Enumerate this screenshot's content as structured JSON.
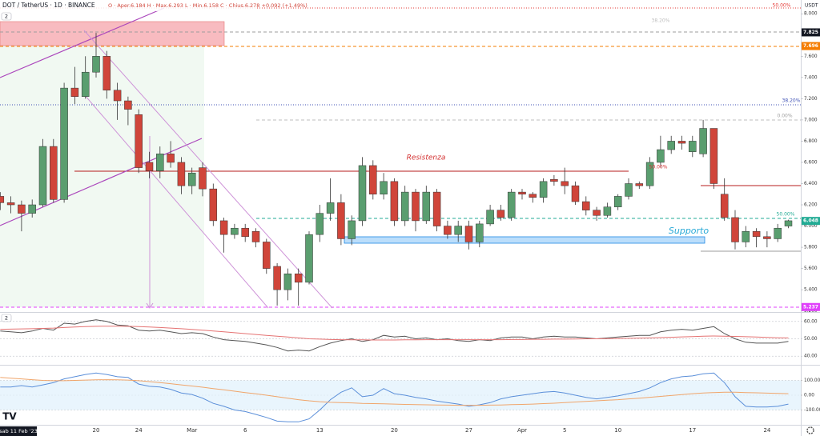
{
  "pane_badges": [
    "2",
    "2"
  ],
  "chart_data": [
    {
      "type": "candlestick",
      "title": "DOT / TetherUS · 1D · BINANCE",
      "subtitle": "O · Aper.6.184  H · Max.6.293  L · Min.6.158  C · Chius.6.278  +0.092 (+1.49%)",
      "crosshair_date": "sab 11 Feb '23",
      "y_label": "USDT",
      "annotations": [
        "Resistenza",
        "Supporto"
      ],
      "fib_labels": [
        "50.00%",
        "38.20%",
        "0.00%",
        "50.00%",
        "50.00%",
        "38.20%"
      ],
      "price_labels": [
        7.825,
        7.696,
        6.048,
        5.237
      ],
      "price_label_colors": [
        "#131722",
        "#f57c00",
        "#22ab94",
        "#e040fb"
      ],
      "up_color": "#5a9e6f",
      "down_color": "#d0453a",
      "ylim": [
        5.19,
        8.13
      ],
      "yticks": [
        {
          "value": 5.2,
          "label": "5.200"
        },
        {
          "value": 5.4,
          "label": "5.400"
        },
        {
          "value": 5.6,
          "label": "5.600"
        },
        {
          "value": 5.8,
          "label": "5.800"
        },
        {
          "value": 6,
          "label": "6.000"
        },
        {
          "value": 6.2,
          "label": "6.200"
        },
        {
          "value": 6.4,
          "label": "6.400"
        },
        {
          "value": 6.6,
          "label": "6.600"
        },
        {
          "value": 6.8,
          "label": "6.800"
        },
        {
          "value": 7,
          "label": "7.000"
        },
        {
          "value": 7.2,
          "label": "7.200"
        },
        {
          "value": 7.4,
          "label": "7.400"
        },
        {
          "value": 7.6,
          "label": "7.600"
        },
        {
          "value": 8,
          "label": "8.000"
        }
      ],
      "categories": [
        null,
        null,
        null,
        null,
        null,
        null,
        null,
        null,
        null,
        "20",
        null,
        null,
        null,
        "24",
        null,
        null,
        null,
        null,
        "Mar",
        null,
        null,
        null,
        null,
        "6",
        null,
        null,
        null,
        null,
        null,
        null,
        "13",
        null,
        null,
        null,
        null,
        null,
        null,
        "20",
        null,
        null,
        null,
        null,
        null,
        null,
        "27",
        null,
        null,
        null,
        null,
        "Apr",
        null,
        null,
        null,
        "5",
        null,
        null,
        null,
        null,
        "10",
        null,
        null,
        null,
        null,
        null,
        null,
        "17",
        null,
        null,
        null,
        null,
        null,
        null,
        "24",
        null,
        null
      ],
      "open": [
        6.28,
        6.22,
        6.2,
        6.12,
        6.2,
        6.75,
        6.25,
        7.3,
        7.22,
        7.45,
        7.6,
        7.28,
        7.18,
        7.05,
        6.6,
        6.52,
        6.68,
        6.6,
        6.38,
        6.55,
        6.35,
        6.05,
        5.92,
        5.98,
        5.95,
        5.85,
        5.62,
        5.4,
        5.55,
        5.47,
        5.92,
        6.12,
        6.22,
        5.88,
        6.05,
        6.57,
        6.3,
        6.42,
        6.05,
        6.32,
        6.05,
        6.32,
        6.0,
        5.92,
        6.0,
        5.85,
        6.02,
        6.15,
        6.08,
        6.32,
        6.3,
        6.27,
        6.44,
        6.42,
        6.38,
        6.23,
        6.15,
        6.1,
        6.18,
        6.28,
        6.4,
        6.38,
        6.6,
        6.72,
        6.8,
        6.7,
        6.68,
        6.92,
        6.3,
        6.08,
        5.85,
        5.95,
        5.9,
        5.88,
        6.0
      ],
      "high": [
        6.32,
        6.28,
        6.24,
        6.25,
        6.82,
        6.82,
        7.35,
        7.5,
        7.6,
        7.82,
        7.65,
        7.35,
        7.22,
        7.1,
        6.7,
        6.75,
        6.8,
        6.65,
        6.55,
        6.6,
        6.4,
        6.08,
        6.02,
        6.02,
        5.98,
        5.88,
        5.65,
        5.6,
        5.6,
        5.95,
        6.2,
        6.45,
        6.3,
        6.1,
        6.65,
        6.62,
        6.5,
        6.45,
        6.38,
        6.35,
        6.38,
        6.35,
        6.05,
        6.05,
        6.05,
        6.05,
        6.2,
        6.2,
        6.35,
        6.35,
        6.32,
        6.45,
        6.48,
        6.55,
        6.42,
        6.28,
        6.18,
        6.22,
        6.3,
        6.45,
        6.42,
        6.65,
        6.85,
        6.85,
        6.85,
        6.85,
        7.0,
        6.92,
        6.45,
        6.15,
        6.0,
        5.98,
        5.95,
        6.02,
        6.06
      ],
      "low": [
        6.15,
        6.12,
        5.95,
        6.08,
        6.18,
        6.22,
        6.22,
        7.15,
        7.2,
        7.4,
        7.2,
        7.0,
        6.95,
        6.5,
        6.45,
        6.45,
        6.55,
        6.3,
        6.3,
        6.28,
        6.0,
        5.75,
        5.88,
        5.85,
        5.8,
        5.55,
        5.25,
        5.3,
        5.25,
        5.45,
        5.85,
        6.05,
        5.82,
        5.82,
        6.0,
        6.25,
        6.25,
        6.0,
        6.0,
        5.95,
        6.02,
        5.95,
        5.88,
        5.85,
        5.78,
        5.8,
        6.0,
        6.05,
        6.05,
        6.25,
        6.22,
        6.22,
        6.38,
        6.3,
        6.2,
        6.1,
        6.05,
        6.08,
        6.15,
        6.25,
        6.35,
        6.35,
        6.55,
        6.68,
        6.72,
        6.65,
        6.65,
        6.35,
        6.05,
        5.78,
        5.8,
        5.8,
        5.8,
        5.85,
        5.98
      ],
      "close": [
        6.22,
        6.2,
        6.12,
        6.2,
        6.75,
        6.25,
        7.3,
        7.22,
        7.45,
        7.6,
        7.28,
        7.18,
        7.1,
        6.55,
        6.52,
        6.68,
        6.6,
        6.38,
        6.5,
        6.35,
        6.05,
        5.92,
        5.98,
        5.9,
        5.85,
        5.6,
        5.4,
        5.55,
        5.47,
        5.92,
        6.12,
        6.22,
        5.88,
        6.05,
        6.57,
        6.3,
        6.42,
        6.05,
        6.32,
        6.05,
        6.32,
        6.0,
        5.92,
        6.0,
        5.85,
        6.02,
        6.15,
        6.08,
        6.32,
        6.3,
        6.27,
        6.42,
        6.42,
        6.38,
        6.23,
        6.15,
        6.1,
        6.18,
        6.28,
        6.4,
        6.38,
        6.6,
        6.72,
        6.8,
        6.78,
        6.8,
        6.92,
        6.4,
        6.08,
        5.85,
        5.95,
        5.9,
        5.88,
        5.98,
        6.05
      ]
    },
    {
      "type": "line",
      "ylim": [
        35,
        65
      ],
      "yticks": [
        {
          "value": 40,
          "label": "40.00"
        },
        {
          "value": 50,
          "label": "50.00"
        },
        {
          "value": 60,
          "label": "60.00"
        }
      ],
      "series": [
        {
          "color": "#555555",
          "values": [
            54.5,
            54,
            53.5,
            54.5,
            56,
            55,
            59,
            58.5,
            60,
            61,
            60,
            58,
            57.5,
            55,
            54.5,
            55,
            54,
            53,
            53.5,
            53,
            51,
            49.5,
            49,
            48.5,
            47.5,
            46.5,
            45,
            43,
            43.5,
            43,
            45.5,
            47.5,
            49,
            50,
            48.5,
            49.5,
            52,
            51,
            51.5,
            50,
            50.5,
            49.5,
            50,
            49,
            48.5,
            49.5,
            49,
            50.5,
            51,
            51,
            50,
            51,
            51.5,
            51,
            51,
            50.5,
            50,
            50.5,
            51,
            51.5,
            52,
            52,
            54,
            55,
            55.5,
            55,
            56,
            57,
            53,
            50,
            48,
            47.5,
            47.5,
            47.5,
            48.5
          ]
        },
        {
          "color": "#e57373",
          "values": [
            55.5,
            55.6,
            55.7,
            55.8,
            56,
            56.2,
            56.5,
            56.8,
            57,
            57.2,
            57.3,
            57.3,
            57.2,
            57,
            56.8,
            56.5,
            56.2,
            55.8,
            55.4,
            55,
            54.5,
            54,
            53.5,
            53,
            52.5,
            52,
            51.5,
            51,
            50.5,
            50,
            49.8,
            49.6,
            49.5,
            49.4,
            49.4,
            49.3,
            49.3,
            49.3,
            49.4,
            49.4,
            49.5,
            49.5,
            49.5,
            49.5,
            49.5,
            49.5,
            49.5,
            49.5,
            49.6,
            49.6,
            49.7,
            49.7,
            49.8,
            49.8,
            49.9,
            50,
            50,
            50.1,
            50.2,
            50.3,
            50.4,
            50.5,
            50.7,
            50.9,
            51.1,
            51.3,
            51.5,
            51.6,
            51.5,
            51.4,
            51.2,
            51,
            50.8,
            50.6,
            50.5
          ]
        }
      ]
    },
    {
      "type": "line",
      "ylim": [
        -200,
        200
      ],
      "yticks": [
        {
          "value": -100,
          "label": "-100.00"
        },
        {
          "value": 0,
          "label": "0.00"
        },
        {
          "value": 100,
          "label": "100.00"
        }
      ],
      "series": [
        {
          "color": "#5b8fd9",
          "values": [
            55,
            55,
            65,
            55,
            70,
            85,
            110,
            125,
            140,
            150,
            140,
            125,
            120,
            75,
            60,
            55,
            40,
            15,
            5,
            -20,
            -55,
            -75,
            -100,
            -110,
            -130,
            -150,
            -175,
            -180,
            -180,
            -160,
            -100,
            -30,
            20,
            50,
            -10,
            0,
            45,
            10,
            0,
            -15,
            -25,
            -40,
            -50,
            -60,
            -75,
            -65,
            -50,
            -25,
            -10,
            0,
            10,
            20,
            25,
            15,
            0,
            -15,
            -25,
            -15,
            -5,
            10,
            25,
            50,
            85,
            110,
            125,
            130,
            145,
            150,
            85,
            -10,
            -75,
            -80,
            -80,
            -75,
            -60
          ]
        },
        {
          "color": "#f0a56b",
          "values": [
            120,
            115,
            110,
            105,
            100,
            98,
            98,
            100,
            102,
            104,
            105,
            104,
            102,
            98,
            92,
            85,
            78,
            70,
            62,
            54,
            45,
            36,
            27,
            18,
            9,
            0,
            -10,
            -20,
            -30,
            -38,
            -44,
            -48,
            -50,
            -52,
            -55,
            -57,
            -58,
            -60,
            -62,
            -64,
            -65,
            -66,
            -67,
            -68,
            -68,
            -68,
            -67,
            -66,
            -64,
            -62,
            -60,
            -57,
            -54,
            -50,
            -46,
            -42,
            -38,
            -34,
            -30,
            -25,
            -20,
            -14,
            -8,
            -2,
            4,
            10,
            15,
            18,
            20,
            20,
            18,
            16,
            14,
            12,
            10
          ]
        }
      ]
    }
  ]
}
